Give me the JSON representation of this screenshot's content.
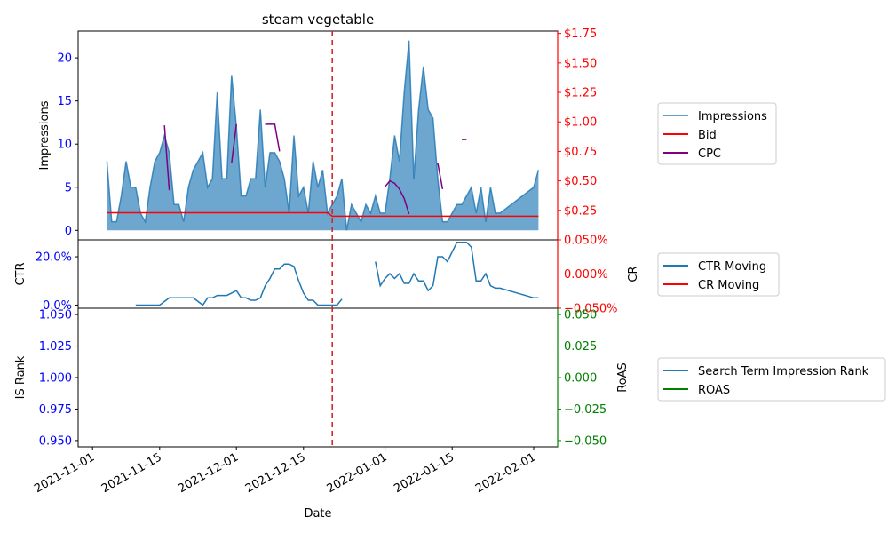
{
  "chart_data": {
    "type": "line",
    "title": "steam vegetable",
    "xlabel": "Date",
    "x_ticks": [
      "2021-11-01",
      "2021-11-15",
      "2021-12-01",
      "2021-12-15",
      "2022-01-01",
      "2022-01-15",
      "2022-02-01"
    ],
    "event_line_date": "2021-12-21",
    "event_line_color": "#d62728",
    "panels": [
      {
        "id": "impressions",
        "left_axis": {
          "label": "Impressions",
          "ylim": [
            -1.1,
            23.1
          ],
          "ticks": [
            0,
            5,
            10,
            15,
            20
          ],
          "tick_labels": [
            "0",
            "5",
            "10",
            "15",
            "20"
          ],
          "color": "#0000ff"
        },
        "right_axis": {
          "label": "",
          "ylim": [
            0,
            1.77
          ],
          "ticks": [
            0.25,
            0.5,
            0.75,
            1.0,
            1.25,
            1.5,
            1.75
          ],
          "tick_labels": [
            "$0.25",
            "$0.50",
            "$0.75",
            "$1.00",
            "$1.25",
            "$1.50",
            "$1.75"
          ],
          "color": "#ff0000"
        },
        "legend": [
          "Impressions",
          "Bid",
          "CPC"
        ],
        "series": [
          {
            "name": "Impressions",
            "axis": "left",
            "style": "area",
            "color": "#1f77b4",
            "x": [
              "2021-11-04",
              "2021-11-05",
              "2021-11-06",
              "2021-11-07",
              "2021-11-08",
              "2021-11-09",
              "2021-11-10",
              "2021-11-11",
              "2021-11-12",
              "2021-11-13",
              "2021-11-14",
              "2021-11-15",
              "2021-11-16",
              "2021-11-17",
              "2021-11-18",
              "2021-11-19",
              "2021-11-20",
              "2021-11-21",
              "2021-11-22",
              "2021-11-23",
              "2021-11-24",
              "2021-11-25",
              "2021-11-26",
              "2021-11-27",
              "2021-11-28",
              "2021-11-29",
              "2021-11-30",
              "2021-12-01",
              "2021-12-02",
              "2021-12-03",
              "2021-12-04",
              "2021-12-05",
              "2021-12-06",
              "2021-12-07",
              "2021-12-08",
              "2021-12-09",
              "2021-12-10",
              "2021-12-11",
              "2021-12-12",
              "2021-12-13",
              "2021-12-14",
              "2021-12-15",
              "2021-12-16",
              "2021-12-17",
              "2021-12-18",
              "2021-12-19",
              "2021-12-20",
              "2021-12-21",
              "2021-12-22",
              "2021-12-23",
              "2021-12-24",
              "2021-12-25",
              "2021-12-26",
              "2021-12-27",
              "2021-12-28",
              "2021-12-29",
              "2021-12-30",
              "2021-12-31",
              "2022-01-01",
              "2022-01-02",
              "2022-01-03",
              "2022-01-04",
              "2022-01-05",
              "2022-01-06",
              "2022-01-07",
              "2022-01-08",
              "2022-01-09",
              "2022-01-10",
              "2022-01-11",
              "2022-01-12",
              "2022-01-13",
              "2022-01-14",
              "2022-01-15",
              "2022-01-16",
              "2022-01-17",
              "2022-01-18",
              "2022-01-19",
              "2022-01-20",
              "2022-01-21",
              "2022-01-22",
              "2022-01-23",
              "2022-01-24",
              "2022-01-25",
              "2022-02-01",
              "2022-02-02"
            ],
            "values": [
              8,
              1,
              1,
              4,
              8,
              5,
              5,
              2,
              1,
              5,
              8,
              9,
              11,
              9,
              3,
              3,
              1,
              5,
              7,
              8,
              9,
              5,
              6,
              16,
              6,
              6,
              18,
              12,
              4,
              4,
              6,
              6,
              14,
              5,
              9,
              9,
              8,
              6,
              2,
              11,
              4,
              5,
              2,
              8,
              5,
              7,
              2,
              3,
              4,
              6,
              0,
              3,
              2,
              1,
              3,
              2,
              4,
              2,
              2,
              6,
              11,
              8,
              16,
              22,
              6,
              14,
              19,
              14,
              13,
              6,
              1,
              1,
              2,
              3,
              3,
              4,
              5,
              2,
              5,
              1,
              5,
              2,
              2,
              5,
              7
            ]
          },
          {
            "name": "Bid",
            "axis": "right",
            "style": "line",
            "color": "#ff0000",
            "x": [
              "2021-11-04",
              "2021-12-20",
              "2021-12-21",
              "2022-02-02"
            ],
            "values": [
              0.23,
              0.23,
              0.2,
              0.2
            ]
          },
          {
            "name": "CPC",
            "axis": "right",
            "style": "line",
            "color": "#800080",
            "segments": [
              {
                "x": [
                  "2021-11-16",
                  "2021-11-17"
                ],
                "values": [
                  0.97,
                  0.42
                ]
              },
              {
                "x": [
                  "2021-11-30",
                  "2021-12-01"
                ],
                "values": [
                  0.65,
                  0.98
                ]
              },
              {
                "x": [
                  "2021-12-07",
                  "2021-12-08",
                  "2021-12-09",
                  "2021-12-10"
                ],
                "values": [
                  0.98,
                  0.98,
                  0.98,
                  0.75
                ]
              },
              {
                "x": [
                  "2022-01-01",
                  "2022-01-02",
                  "2022-01-03",
                  "2022-01-04",
                  "2022-01-05",
                  "2022-01-06"
                ],
                "values": [
                  0.45,
                  0.5,
                  0.48,
                  0.43,
                  0.35,
                  0.22
                ]
              },
              {
                "x": [
                  "2022-01-12",
                  "2022-01-13"
                ],
                "values": [
                  0.65,
                  0.43
                ]
              },
              {
                "x": [
                  "2022-01-17",
                  "2022-01-18"
                ],
                "values": [
                  0.85,
                  0.85
                ]
              }
            ]
          }
        ]
      },
      {
        "id": "ctr",
        "left_axis": {
          "label": "CTR",
          "ylim": [
            -0.013,
            0.27
          ],
          "ticks": [
            0,
            0.2
          ],
          "tick_labels": [
            "0.0%",
            "20.0%"
          ],
          "color": "#0000ff"
        },
        "right_axis": {
          "label": "CR",
          "ylim": [
            -0.05,
            0.05
          ],
          "ticks": [
            -0.05,
            0,
            0.05
          ],
          "tick_labels": [
            "−0.050%",
            "0.000%",
            "0.050%"
          ],
          "color": "#ff0000"
        },
        "legend": [
          "CTR Moving",
          "CR Moving"
        ],
        "series": [
          {
            "name": "CTR Moving",
            "axis": "left",
            "style": "line",
            "color": "#1f77b4",
            "segments": [
              {
                "x": [
                  "2021-11-10",
                  "2021-11-11",
                  "2021-11-12",
                  "2021-11-13",
                  "2021-11-14",
                  "2021-11-15",
                  "2021-11-16",
                  "2021-11-17",
                  "2021-11-18",
                  "2021-11-19",
                  "2021-11-20",
                  "2021-11-21",
                  "2021-11-22",
                  "2021-11-23",
                  "2021-11-24",
                  "2021-11-25",
                  "2021-11-26",
                  "2021-11-27",
                  "2021-11-28",
                  "2021-11-29",
                  "2021-11-30",
                  "2021-12-01",
                  "2021-12-02",
                  "2021-12-03",
                  "2021-12-04",
                  "2021-12-05",
                  "2021-12-06",
                  "2021-12-07",
                  "2021-12-08",
                  "2021-12-09",
                  "2021-12-10",
                  "2021-12-11",
                  "2021-12-12",
                  "2021-12-13",
                  "2021-12-14",
                  "2021-12-15",
                  "2021-12-16",
                  "2021-12-17",
                  "2021-12-18",
                  "2021-12-19",
                  "2021-12-20",
                  "2021-12-21",
                  "2021-12-22",
                  "2021-12-23"
                ],
                "values": [
                  0,
                  0,
                  0,
                  0,
                  0,
                  0,
                  0.015,
                  0.03,
                  0.03,
                  0.03,
                  0.03,
                  0.03,
                  0.03,
                  0.015,
                  0,
                  0.03,
                  0.03,
                  0.04,
                  0.04,
                  0.04,
                  0.05,
                  0.06,
                  0.03,
                  0.03,
                  0.02,
                  0.02,
                  0.03,
                  0.08,
                  0.11,
                  0.15,
                  0.15,
                  0.17,
                  0.17,
                  0.16,
                  0.1,
                  0.05,
                  0.02,
                  0.02,
                  0,
                  0,
                  0,
                  0,
                  0,
                  0.025
                ]
              },
              {
                "x": [
                  "2021-12-30",
                  "2021-12-31",
                  "2022-01-01",
                  "2022-01-02",
                  "2022-01-03",
                  "2022-01-04",
                  "2022-01-05",
                  "2022-01-06",
                  "2022-01-07",
                  "2022-01-08",
                  "2022-01-09",
                  "2022-01-10",
                  "2022-01-11",
                  "2022-01-12",
                  "2022-01-13",
                  "2022-01-14",
                  "2022-01-15",
                  "2022-01-16",
                  "2022-01-17",
                  "2022-01-18",
                  "2022-01-19",
                  "2022-01-20",
                  "2022-01-21",
                  "2022-01-22",
                  "2022-01-23",
                  "2022-01-24",
                  "2022-01-25",
                  "2022-02-01",
                  "2022-02-02"
                ],
                "values": [
                  0.18,
                  0.08,
                  0.11,
                  0.13,
                  0.11,
                  0.13,
                  0.09,
                  0.09,
                  0.13,
                  0.1,
                  0.1,
                  0.06,
                  0.08,
                  0.2,
                  0.2,
                  0.18,
                  0.22,
                  0.26,
                  0.26,
                  0.26,
                  0.24,
                  0.1,
                  0.1,
                  0.13,
                  0.08,
                  0.07,
                  0.07,
                  0.03,
                  0.03
                ]
              }
            ]
          }
        ]
      },
      {
        "id": "rank",
        "left_axis": {
          "label": "IS Rank",
          "ylim": [
            0.945,
            1.055
          ],
          "ticks": [
            0.95,
            0.975,
            1.0,
            1.025,
            1.05
          ],
          "tick_labels": [
            "0.950",
            "0.975",
            "1.000",
            "1.025",
            "1.050"
          ],
          "color": "#0000ff"
        },
        "right_axis": {
          "label": "RoAS",
          "ylim": [
            -0.055,
            0.055
          ],
          "ticks": [
            -0.05,
            -0.025,
            0,
            0.025,
            0.05
          ],
          "tick_labels": [
            "−0.050",
            "−0.025",
            "0.000",
            "0.025",
            "0.050"
          ],
          "color": "#008000"
        },
        "legend": [
          "Search Term Impression Rank",
          "ROAS"
        ],
        "series": []
      }
    ],
    "legend_styles": {
      "Impressions": {
        "color": "#1f77b4",
        "opacity": 0.7
      },
      "Bid": {
        "color": "#ff0000",
        "opacity": 1
      },
      "CPC": {
        "color": "#800080",
        "opacity": 1
      },
      "CTR Moving": {
        "color": "#1f77b4",
        "opacity": 1
      },
      "CR Moving": {
        "color": "#ff0000",
        "opacity": 1
      },
      "Search Term Impression Rank": {
        "color": "#1f77b4",
        "opacity": 1
      },
      "ROAS": {
        "color": "#008000",
        "opacity": 1
      }
    }
  }
}
